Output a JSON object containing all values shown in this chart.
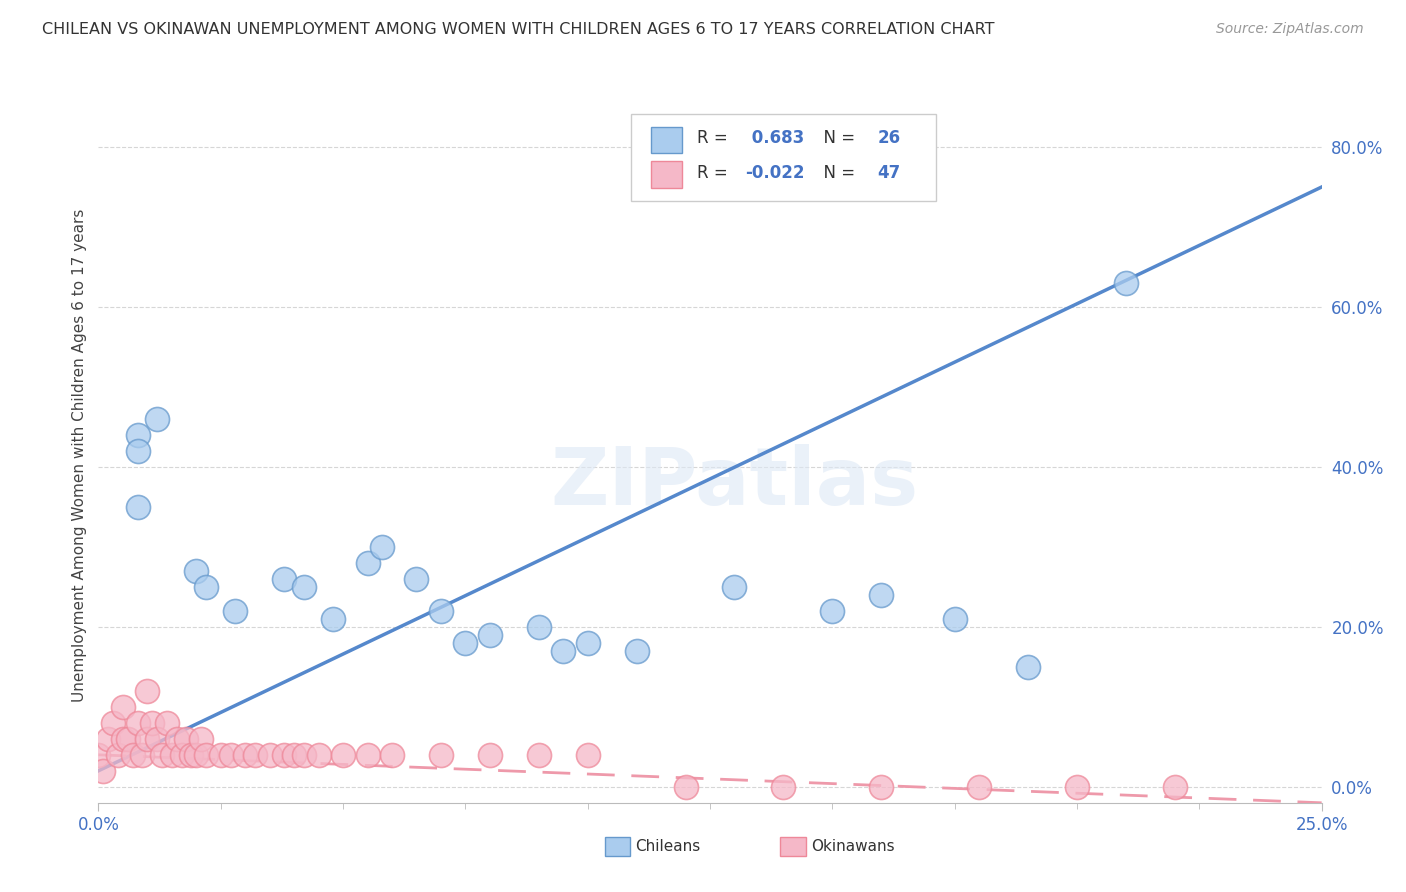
{
  "title": "CHILEAN VS OKINAWAN UNEMPLOYMENT AMONG WOMEN WITH CHILDREN AGES 6 TO 17 YEARS CORRELATION CHART",
  "source": "Source: ZipAtlas.com",
  "ylabel": "Unemployment Among Women with Children Ages 6 to 17 years",
  "xlim": [
    0.0,
    0.25
  ],
  "ylim": [
    -0.02,
    0.85
  ],
  "yticks": [
    0.0,
    0.2,
    0.4,
    0.6,
    0.8
  ],
  "ytick_labels": [
    "0.0%",
    "20.0%",
    "40.0%",
    "60.0%",
    "80.0%"
  ],
  "xtick_left": "0.0%",
  "xtick_right": "25.0%",
  "legend_r_chilean": "0.683",
  "legend_n_chilean": "26",
  "legend_r_okinawan": "-0.022",
  "legend_n_okinawan": "47",
  "chilean_fill_color": "#aaccee",
  "okinawan_fill_color": "#f5b8c8",
  "chilean_edge_color": "#6699cc",
  "okinawan_edge_color": "#ee8899",
  "chilean_line_color": "#5588cc",
  "okinawan_line_color": "#ee99aa",
  "watermark_text": "ZIPatlas",
  "chilean_scatter_x": [
    0.008,
    0.012,
    0.008,
    0.008,
    0.02,
    0.022,
    0.028,
    0.038,
    0.042,
    0.048,
    0.055,
    0.058,
    0.065,
    0.07,
    0.075,
    0.08,
    0.09,
    0.095,
    0.1,
    0.11,
    0.13,
    0.15,
    0.16,
    0.175,
    0.19,
    0.21
  ],
  "chilean_scatter_y": [
    0.44,
    0.46,
    0.42,
    0.35,
    0.27,
    0.25,
    0.22,
    0.26,
    0.25,
    0.21,
    0.28,
    0.3,
    0.26,
    0.22,
    0.18,
    0.19,
    0.2,
    0.17,
    0.18,
    0.17,
    0.25,
    0.22,
    0.24,
    0.21,
    0.15,
    0.63
  ],
  "okinawan_scatter_x": [
    0.0,
    0.001,
    0.002,
    0.003,
    0.004,
    0.005,
    0.005,
    0.006,
    0.007,
    0.008,
    0.009,
    0.01,
    0.01,
    0.011,
    0.012,
    0.013,
    0.014,
    0.015,
    0.016,
    0.017,
    0.018,
    0.019,
    0.02,
    0.021,
    0.022,
    0.025,
    0.027,
    0.03,
    0.032,
    0.035,
    0.038,
    0.04,
    0.042,
    0.045,
    0.05,
    0.055,
    0.06,
    0.07,
    0.08,
    0.09,
    0.1,
    0.12,
    0.14,
    0.16,
    0.18,
    0.2,
    0.22
  ],
  "okinawan_scatter_y": [
    0.04,
    0.02,
    0.06,
    0.08,
    0.04,
    0.06,
    0.1,
    0.06,
    0.04,
    0.08,
    0.04,
    0.06,
    0.12,
    0.08,
    0.06,
    0.04,
    0.08,
    0.04,
    0.06,
    0.04,
    0.06,
    0.04,
    0.04,
    0.06,
    0.04,
    0.04,
    0.04,
    0.04,
    0.04,
    0.04,
    0.04,
    0.04,
    0.04,
    0.04,
    0.04,
    0.04,
    0.04,
    0.04,
    0.04,
    0.04,
    0.04,
    0.0,
    0.0,
    0.0,
    0.0,
    0.0,
    0.0
  ],
  "chilean_line_x": [
    0.0,
    0.25
  ],
  "chilean_line_y": [
    0.02,
    0.75
  ],
  "okinawan_line_x": [
    0.0,
    0.25
  ],
  "okinawan_line_y": [
    0.04,
    -0.02
  ]
}
